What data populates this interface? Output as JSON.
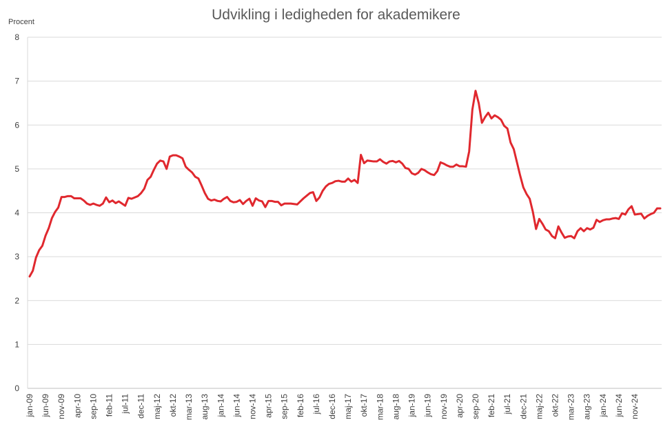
{
  "chart_data": {
    "type": "line",
    "title": "Udvikling i ledigheden for akademikere",
    "ylabel": "Procent",
    "xlabel": "",
    "ylim": [
      0,
      8
    ],
    "yticks": [
      0,
      1,
      2,
      3,
      4,
      5,
      6,
      7,
      8
    ],
    "grid": true,
    "legend": "none",
    "line_color": "#e0282e",
    "x_tick_labels": [
      "jan-09",
      "jun-09",
      "nov-09",
      "apr-10",
      "sep-10",
      "feb-11",
      "jul-11",
      "dec-11",
      "maj-12",
      "okt-12",
      "mar-13",
      "aug-13",
      "jan-14",
      "jun-14",
      "nov-14",
      "apr-15",
      "sep-15",
      "feb-16",
      "jul-16",
      "dec-16",
      "maj-17",
      "okt-17",
      "mar-18",
      "aug-18",
      "jan-19",
      "jun-19",
      "nov-19",
      "apr-20",
      "sep-20",
      "feb-21",
      "jul-21",
      "dec-21",
      "maj-22",
      "okt-22",
      "mar-23",
      "aug-23",
      "jan-24",
      "jun-24",
      "nov-24"
    ],
    "x_start": "jan-09",
    "frequency": "monthly",
    "values": [
      2.55,
      2.68,
      2.98,
      3.15,
      3.25,
      3.48,
      3.65,
      3.88,
      4.02,
      4.12,
      4.36,
      4.36,
      4.38,
      4.38,
      4.33,
      4.33,
      4.33,
      4.28,
      4.21,
      4.18,
      4.21,
      4.18,
      4.16,
      4.21,
      4.35,
      4.24,
      4.28,
      4.22,
      4.26,
      4.21,
      4.16,
      4.34,
      4.32,
      4.35,
      4.38,
      4.45,
      4.55,
      4.75,
      4.82,
      4.98,
      5.12,
      5.19,
      5.17,
      5.0,
      5.28,
      5.31,
      5.31,
      5.28,
      5.24,
      5.05,
      4.98,
      4.92,
      4.82,
      4.78,
      4.62,
      4.45,
      4.32,
      4.28,
      4.3,
      4.27,
      4.26,
      4.32,
      4.36,
      4.27,
      4.24,
      4.25,
      4.29,
      4.2,
      4.27,
      4.32,
      4.16,
      4.33,
      4.28,
      4.26,
      4.13,
      4.27,
      4.27,
      4.25,
      4.25,
      4.17,
      4.21,
      4.21,
      4.21,
      4.2,
      4.19,
      4.26,
      4.33,
      4.39,
      4.45,
      4.47,
      4.27,
      4.35,
      4.5,
      4.6,
      4.66,
      4.68,
      4.72,
      4.73,
      4.71,
      4.71,
      4.78,
      4.71,
      4.75,
      4.68,
      5.32,
      5.13,
      5.19,
      5.18,
      5.17,
      5.17,
      5.22,
      5.16,
      5.12,
      5.17,
      5.18,
      5.15,
      5.18,
      5.12,
      5.02,
      5.0,
      4.9,
      4.87,
      4.91,
      5.0,
      4.97,
      4.92,
      4.88,
      4.86,
      4.95,
      5.15,
      5.12,
      5.08,
      5.05,
      5.05,
      5.1,
      5.06,
      5.06,
      5.05,
      5.4,
      6.35,
      6.78,
      6.5,
      6.05,
      6.18,
      6.28,
      6.15,
      6.22,
      6.18,
      6.12,
      5.98,
      5.92,
      5.6,
      5.45,
      5.15,
      4.85,
      4.58,
      4.43,
      4.32,
      4.02,
      3.63,
      3.86,
      3.75,
      3.62,
      3.58,
      3.47,
      3.42,
      3.69,
      3.55,
      3.43,
      3.46,
      3.47,
      3.42,
      3.58,
      3.65,
      3.58,
      3.65,
      3.62,
      3.66,
      3.84,
      3.79,
      3.83,
      3.85,
      3.85,
      3.87,
      3.88,
      3.86,
      3.99,
      3.96,
      4.08,
      4.15,
      3.96,
      3.97,
      3.98,
      3.87,
      3.93,
      3.97,
      4.0,
      4.1,
      4.1
    ]
  }
}
